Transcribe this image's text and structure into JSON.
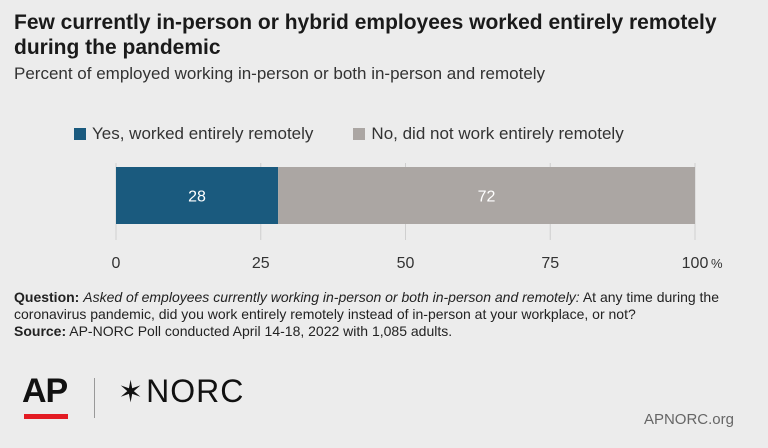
{
  "title": "Few currently in-person or hybrid employees worked entirely remotely during the pandemic",
  "subtitle": "Percent of employed working in-person or both in-person and remotely",
  "chart_data": {
    "type": "bar",
    "orientation": "horizontal-stacked",
    "categories": [
      ""
    ],
    "series": [
      {
        "name": "Yes, worked entirely remotely",
        "values": [
          28
        ],
        "color": "#1a5a7e"
      },
      {
        "name": "No, did not work entirely remotely",
        "values": [
          72
        ],
        "color": "#aba6a3"
      }
    ],
    "xlim": [
      0,
      100
    ],
    "ticks": [
      {
        "value": 0,
        "label": "0"
      },
      {
        "value": 25,
        "label": "25"
      },
      {
        "value": 50,
        "label": "50"
      },
      {
        "value": 75,
        "label": "75"
      },
      {
        "value": 100,
        "label": "100"
      }
    ],
    "unit": "%",
    "legend": "top-left",
    "grid": true
  },
  "note": {
    "question_label": "Question:",
    "question_italic": "Asked of employees currently working in-person or both in-person and remotely:",
    "question_text": " At any time during the coronavirus pandemic, did you work entirely remotely instead of in-person at your workplace, or not?",
    "source_label": "Source:",
    "source_text": " AP-NORC Poll conducted April 14-18, 2022 with 1,085 adults."
  },
  "footer": {
    "ap_logo": "AP",
    "norc_logo": "NORC",
    "website": "APNORC.org"
  }
}
